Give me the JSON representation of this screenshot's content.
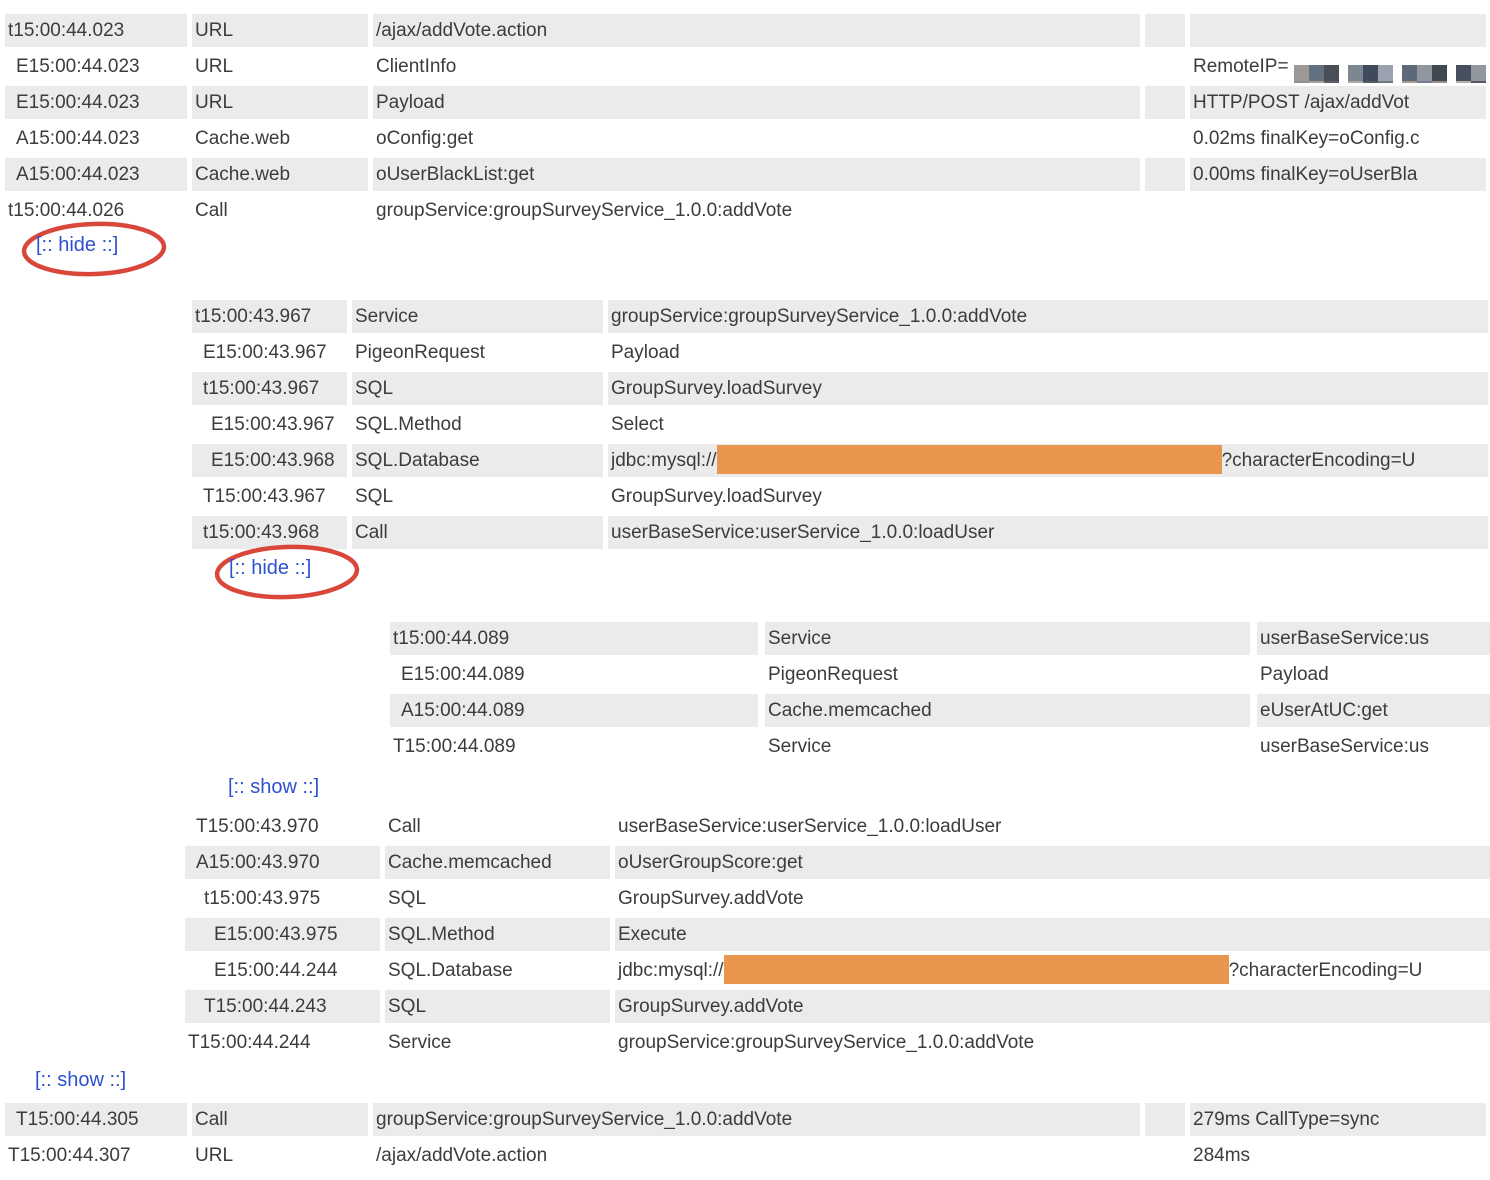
{
  "palette": {
    "stripe_gray": "#ebebeb",
    "text_color": "#3c3c3c",
    "link_blue": "#2e52cf",
    "annotation_red": "#d9473b",
    "redaction_orange": "#e8954d"
  },
  "links": {
    "hide_label": "[:: hide ::]",
    "show_label": "[:: show ::]"
  },
  "redaction": {
    "jdbc_prefix": "jdbc:mysql://",
    "jdbc_suffix": "?characterEncoding=U",
    "mosaic_clusters": [
      [
        "#9b9a97",
        "#63707f",
        "#4a4f57",
        "#8d9097",
        "#a89f92",
        "#585f6b"
      ],
      [
        "#7c8691",
        "#3f4a5c",
        "#9aa2ad",
        "#b0a99e",
        "#515a68",
        "#6d767f"
      ],
      [
        "#5d6878",
        "#8f969e",
        "#424853",
        "#a59d90",
        "#747f8d",
        "#969089"
      ],
      [
        "#46505f",
        "#9097a1",
        "#6a7382",
        "#b5ada0",
        "#54575e",
        "#838b95"
      ]
    ]
  },
  "tables": {
    "a": {
      "rows": [
        {
          "ts": "t15:00:44.023",
          "type": "URL",
          "name": "/ajax/addVote.action",
          "value": ""
        },
        {
          "ts": "E15:00:44.023",
          "type": "URL",
          "name": "ClientInfo",
          "value": "RemoteIP="
        },
        {
          "ts": "E15:00:44.023",
          "type": "URL",
          "name": "Payload",
          "value": "HTTP/POST /ajax/addVot"
        },
        {
          "ts": "A15:00:44.023",
          "type": "Cache.web",
          "name": "oConfig:get",
          "value": "0.02ms finalKey=oConfig.c"
        },
        {
          "ts": "A15:00:44.023",
          "type": "Cache.web",
          "name": "oUserBlackList:get",
          "value": "0.00ms finalKey=oUserBla"
        },
        {
          "ts": "t15:00:44.026",
          "type": "Call",
          "name": "groupService:groupSurveyService_1.0.0:addVote",
          "value": ""
        }
      ]
    },
    "b": {
      "rows": [
        {
          "ts": "t15:00:43.967",
          "type": "Service",
          "name": "groupService:groupSurveyService_1.0.0:addVote"
        },
        {
          "ts": "E15:00:43.967",
          "type": "PigeonRequest",
          "name": "Payload"
        },
        {
          "ts": "t15:00:43.967",
          "type": "SQL",
          "name": "GroupSurvey.loadSurvey"
        },
        {
          "ts": "E15:00:43.967",
          "type": "SQL.Method",
          "name": "Select"
        },
        {
          "ts": "E15:00:43.968",
          "type": "SQL.Database",
          "name": "jdbc:mysql:// [redacted] ?characterEncoding=U"
        },
        {
          "ts": "T15:00:43.967",
          "type": "SQL",
          "name": "GroupSurvey.loadSurvey"
        },
        {
          "ts": "t15:00:43.968",
          "type": "Call",
          "name": "userBaseService:userService_1.0.0:loadUser"
        }
      ]
    },
    "c": {
      "rows": [
        {
          "ts": "t15:00:44.089",
          "type": "Service",
          "name": "userBaseService:us"
        },
        {
          "ts": "E15:00:44.089",
          "type": "PigeonRequest",
          "name": "Payload"
        },
        {
          "ts": "A15:00:44.089",
          "type": "Cache.memcached",
          "name": "eUserAtUC:get"
        },
        {
          "ts": "T15:00:44.089",
          "type": "Service",
          "name": "userBaseService:us"
        }
      ]
    },
    "d": {
      "rows": [
        {
          "ts": "T15:00:43.970",
          "type": "Call",
          "name": "userBaseService:userService_1.0.0:loadUser"
        },
        {
          "ts": "A15:00:43.970",
          "type": "Cache.memcached",
          "name": "oUserGroupScore:get"
        },
        {
          "ts": "t15:00:43.975",
          "type": "SQL",
          "name": "GroupSurvey.addVote"
        },
        {
          "ts": "E15:00:43.975",
          "type": "SQL.Method",
          "name": "Execute"
        },
        {
          "ts": "E15:00:44.244",
          "type": "SQL.Database",
          "name": "jdbc:mysql:// [redacted] ?characterEncoding=U"
        },
        {
          "ts": "T15:00:44.243",
          "type": "SQL",
          "name": "GroupSurvey.addVote"
        },
        {
          "ts": "T15:00:44.244",
          "type": "Service",
          "name": "groupService:groupSurveyService_1.0.0:addVote"
        }
      ]
    },
    "e": {
      "rows": [
        {
          "ts": "T15:00:44.305",
          "type": "Call",
          "name": "groupService:groupSurveyService_1.0.0:addVote",
          "value": "279ms CallType=sync"
        },
        {
          "ts": "T15:00:44.307",
          "type": "URL",
          "name": "/ajax/addVote.action",
          "value": "284ms"
        }
      ]
    }
  }
}
